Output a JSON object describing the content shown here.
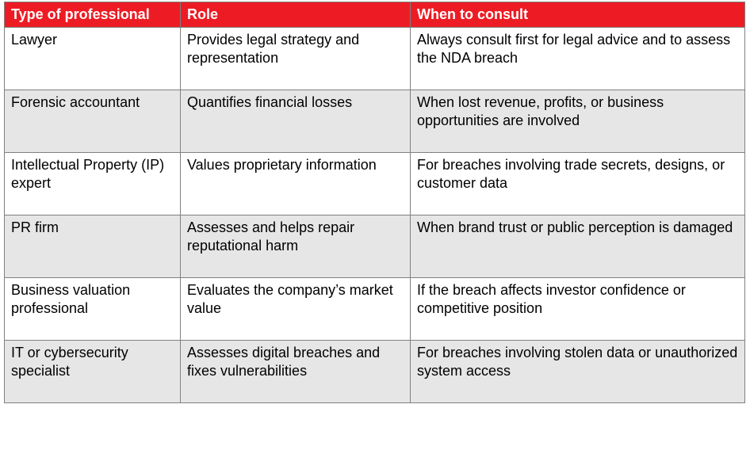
{
  "table": {
    "header_bg": "#ed1c24",
    "header_fg": "#ffffff",
    "border_color": "#808080",
    "row_alt_bg": "#e6e6e6",
    "row_bg": "#ffffff",
    "columns": [
      "Type of professional",
      "Role",
      "When to consult"
    ],
    "rows": [
      {
        "type": "Lawyer",
        "role": "Provides legal strategy and representation",
        "when": "Always consult first for legal advice and to assess the NDA breach"
      },
      {
        "type": "Forensic accountant",
        "role": "Quantifies financial losses",
        "when": "When lost revenue, profits, or business opportunities are involved"
      },
      {
        "type": "Intellectual Property (IP) expert",
        "role": "Values proprietary information",
        "when": "For breaches involving trade secrets, designs, or customer data"
      },
      {
        "type": "PR firm",
        "role": "Assesses and helps repair reputational harm",
        "when": "When brand trust or public perception is damaged"
      },
      {
        "type": "Business valuation professional",
        "role": "Evaluates the company’s market value",
        "when": "If the breach affects investor confidence or competitive position"
      },
      {
        "type": "IT or cybersecurity specialist",
        "role": "Assesses digital breaches and fixes vulnerabilities",
        "when": "For breaches involving stolen data or unauthorized system access"
      }
    ]
  }
}
